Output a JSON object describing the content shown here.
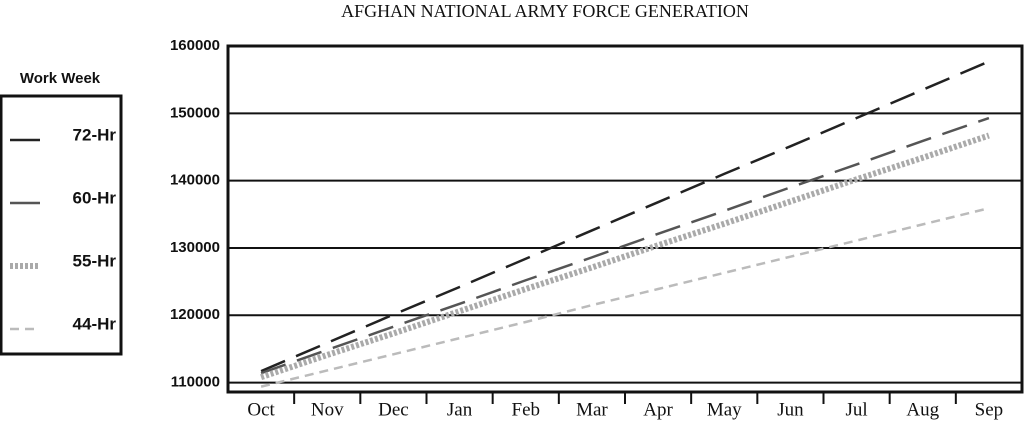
{
  "chart_data": {
    "type": "line",
    "title": "AFGHAN NATIONAL ARMY FORCE GENERATION",
    "legend_title": "Work Week",
    "legend": "left",
    "grid": true,
    "categories": [
      "Oct",
      "Nov",
      "Dec",
      "Jan",
      "Feb",
      "Mar",
      "Apr",
      "May",
      "Jun",
      "Jul",
      "Aug",
      "Sep"
    ],
    "ylim": [
      108600,
      160000
    ],
    "yticks": [
      110000,
      120000,
      130000,
      140000,
      150000,
      160000
    ],
    "series": [
      {
        "name": "72-Hr",
        "color": "#222222",
        "style": "long-dash",
        "values": [
          111700,
          115900,
          120100,
          124200,
          128400,
          132600,
          136800,
          141000,
          145100,
          149300,
          153500,
          157700
        ]
      },
      {
        "name": "60-Hr",
        "color": "#555555",
        "style": "long-dash",
        "values": [
          111400,
          114850,
          118300,
          121700,
          125200,
          128600,
          132100,
          135500,
          139000,
          142400,
          145900,
          149300
        ]
      },
      {
        "name": "55-Hr",
        "color": "#aaaaaa",
        "style": "dotted",
        "values": [
          110800,
          114100,
          117300,
          120600,
          123900,
          127100,
          130400,
          133600,
          136900,
          140200,
          143400,
          146700
        ]
      },
      {
        "name": "44-Hr",
        "color": "#bbbbbb",
        "style": "short-dash",
        "values": [
          109400,
          111800,
          114200,
          116600,
          119000,
          121500,
          123900,
          126300,
          128700,
          131100,
          133500,
          135900
        ]
      }
    ]
  }
}
